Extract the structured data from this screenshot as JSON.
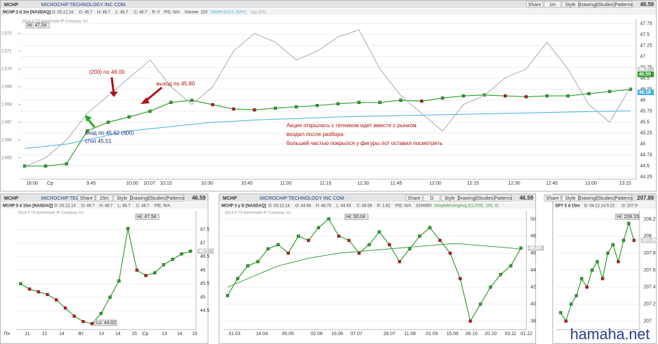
{
  "chart_data": [
    {
      "type": "line",
      "symbol": "MCHP",
      "description": "MICROCHIP TECHNOLOGY INC COM",
      "toolbar": [
        "Share",
        "1m",
        "Style",
        "Drawings",
        "Studies",
        "Patterns"
      ],
      "last": 46.59,
      "title": "MCHP 2 d 1m [NASDAQ]",
      "header": [
        "D: 03.12.14",
        "O: 46.7",
        "H: 46.7",
        "L: 46.7",
        "C: 46.7",
        "R: 0",
        "P/E: N/A",
        "Volume",
        "100"
      ],
      "copyright": "2014 © TD Ameritrade IP Company, Inc.",
      "hi_label": "Hi: 47.54",
      "series": [
        {
          "color": "#2e9e2e",
          "values": [
            44.5,
            44.5,
            44.55,
            45.3,
            45.5,
            45.62,
            45.75,
            45.95,
            46.0,
            45.9,
            45.8,
            45.78,
            45.82,
            45.85,
            45.88,
            45.92,
            45.95,
            45.95,
            46.0,
            45.98,
            46.05,
            46.1,
            46.12,
            46.1,
            46.08,
            46.1,
            46.1,
            46.15,
            46.2,
            46.25
          ]
        },
        {
          "name": "VWAP (0,0,0, DAY)",
          "color": "#3fb0e0",
          "values": [
            44.9,
            44.95,
            45.0,
            45.1,
            45.2,
            45.3,
            45.35,
            45.4,
            45.45,
            45.5,
            45.52,
            45.55,
            45.57,
            45.58,
            45.6,
            45.62,
            45.63,
            45.64,
            45.65,
            45.66,
            45.67,
            45.68,
            45.69,
            45.7,
            45.71,
            45.72,
            45.73,
            45.74,
            45.75,
            45.76
          ]
        },
        {
          "name": "spy (6S)",
          "color": "#a8a8a8",
          "axis": "y2",
          "values": [
            2064.5,
            2065,
            2066,
            2067.5,
            2068.5,
            2069.5,
            2070.5,
            2069,
            2068,
            2069,
            2071,
            2072,
            2071.5,
            2070.5,
            2071,
            2071.8,
            2072.2,
            2070,
            2068.5,
            2067.5,
            2066.5,
            2068,
            2068.5,
            2069.5,
            2070,
            2071.5,
            2070,
            2068,
            2067,
            2069
          ]
        }
      ],
      "x_labels": [
        "16:00",
        "Ср",
        "9:45",
        "10:00",
        "10:07",
        "10:15",
        "10:30",
        "10:45",
        "11:00",
        "11:15",
        "11:30",
        "11:45",
        "12:00",
        "12:15",
        "12:30",
        "12:45",
        "13:00",
        "13:15"
      ],
      "ylim": [
        44.2,
        47.85
      ],
      "yticks": [
        47.75,
        47.5,
        47.25,
        47,
        46.75,
        46.5,
        46.25,
        46,
        45.75,
        45.5,
        45.25,
        45,
        44.75,
        44.5,
        44.25
      ],
      "y2lim": [
        2063.8,
        2072.8
      ],
      "y2ticks": [
        {
          "value": 2072,
          "label": "2,072"
        },
        {
          "value": 2071,
          "label": "2,071"
        },
        {
          "value": 2070,
          "label": "2,070"
        },
        {
          "value": 2069,
          "label": "2,069"
        },
        {
          "value": 2068,
          "label": "2,068"
        },
        {
          "value": 2067,
          "label": "2,067"
        },
        {
          "value": 2066,
          "label": "2,066"
        },
        {
          "value": 2065,
          "label": "2,065"
        }
      ],
      "price_tags": [
        46.7,
        46.59,
        46.18
      ],
      "annotations": [
        "(200) по 46.00",
        "выход по 45.80",
        "вход по 45.62 (300)",
        "стоп 45.51",
        "Акция открылась с гепчиком идет вместе с рынком",
        "входил после разбора",
        "большей частью покрылся у фигуры пот оставил посмотреть"
      ]
    },
    {
      "type": "line",
      "symbol": "MCHP",
      "description": "MICROCHIP TECHNOLOGY INC COM",
      "toolbar": [
        "Share",
        "15m",
        "Style",
        "Drawings",
        "Studies",
        "Patterns"
      ],
      "last": 46.59,
      "title": "MCHP 5 d 15m [NASDAQ]",
      "header": [
        "D: 03.12.14",
        "O: 46.7",
        "H: 46.7",
        "L: 46.7",
        "C: 46.7",
        "P/E: N/A"
      ],
      "copyright": "2014 © TD Ameritrade IP Company, Inc.",
      "hi_label": "Hi: 47.54",
      "lo_label": "Lo: 44.02",
      "series": [
        {
          "color": "#2e9e2e",
          "values": [
            45.5,
            45.3,
            45.2,
            45.1,
            44.9,
            44.6,
            44.3,
            44.1,
            44.02,
            44.4,
            45.0,
            45.6,
            47.54,
            46.0,
            45.8,
            45.9,
            46.2,
            46.4,
            46.6,
            46.7
          ]
        }
      ],
      "x_labels": [
        "Пн",
        "11",
        "12",
        "14",
        "Вт",
        "13",
        "14",
        "15",
        "Ср",
        "13",
        "14",
        "15"
      ],
      "ylim": [
        43.8,
        48.2
      ],
      "yticks": [
        47.5,
        47,
        46.5,
        46,
        45.5,
        45,
        44.5
      ],
      "price_tags": [
        46.7
      ]
    },
    {
      "type": "line",
      "symbol": "MCHP",
      "description": "MICROCHIP TECHNOLOGY INC COM",
      "toolbar": [
        "Share",
        "D",
        "Style",
        "Drawings",
        "Studies",
        "Patterns"
      ],
      "last": 46.59,
      "title": "MCHP 3 y D [NASDAQ]",
      "header": [
        "D: 03.12.14",
        "O: 44.94",
        "H: 46.75",
        "L: 44.93",
        "C: 46.59",
        "R: 1.82",
        "P/E: N/A",
        "3194850"
      ],
      "copyright": "2014 © TD Ameritrade IP Company, Inc.",
      "hi_label": "Hi: 50.04",
      "series": [
        {
          "color": "#2e9e2e",
          "values": [
            41,
            43,
            44.5,
            45,
            46.5,
            47,
            46,
            48,
            47.5,
            49,
            50.04,
            48,
            47.5,
            46,
            47,
            48.5,
            47,
            45,
            46.5,
            48,
            49,
            47.5,
            46,
            43,
            38,
            40,
            42,
            43.5,
            44.5,
            46.59
          ]
        },
        {
          "name": "SimpleMovingAvg (CLOSE, 200, 0)",
          "color": "#3a9a3a",
          "values": [
            42,
            42.5,
            43,
            43.5,
            44,
            44.5,
            44.8,
            45.1,
            45.4,
            45.6,
            45.8,
            46,
            46.1,
            46.2,
            46.3,
            46.4,
            46.5,
            46.6,
            46.7,
            46.8,
            46.9,
            47,
            47.1,
            47.1,
            47,
            46.9,
            46.8,
            46.7,
            46.6,
            46.46
          ]
        }
      ],
      "x_labels": [
        "31.03",
        "14.04",
        "05.05",
        "02.06",
        "16.06",
        "07.07",
        "28.07",
        "11.08",
        "01.09",
        "15.09",
        "06.10",
        "20.10",
        "03.11",
        "01.12"
      ],
      "ylim": [
        37,
        51
      ],
      "yticks": [
        50,
        48,
        46,
        44,
        42,
        40,
        38
      ],
      "price_tags": [
        46.59
      ]
    },
    {
      "type": "line",
      "symbol": "SPY",
      "toolbar": [
        "Share",
        "Style",
        "Drawings",
        "Studies",
        "Patterns"
      ],
      "last": 207.89,
      "title": "SPY 5 d 15m",
      "header": [
        "D: 04.12.14 5:15",
        "O: 207.9"
      ],
      "hi_label": "Hi: 208.15",
      "series": [
        {
          "color": "#2e9e2e",
          "values": [
            207.1,
            207.0,
            207.2,
            207.3,
            207.5,
            207.4,
            207.6,
            207.7,
            207.5,
            207.8,
            207.9,
            207.7,
            207.95,
            208.15,
            207.95
          ]
        }
      ],
      "x_labels": [],
      "ylim": [
        206.9,
        208.3
      ],
      "yticks": [
        208.2,
        208,
        207.8,
        207.6,
        207.4,
        207.2,
        207
      ],
      "price_tags": [
        207.95
      ]
    }
  ],
  "watermark": "hamaha.net"
}
